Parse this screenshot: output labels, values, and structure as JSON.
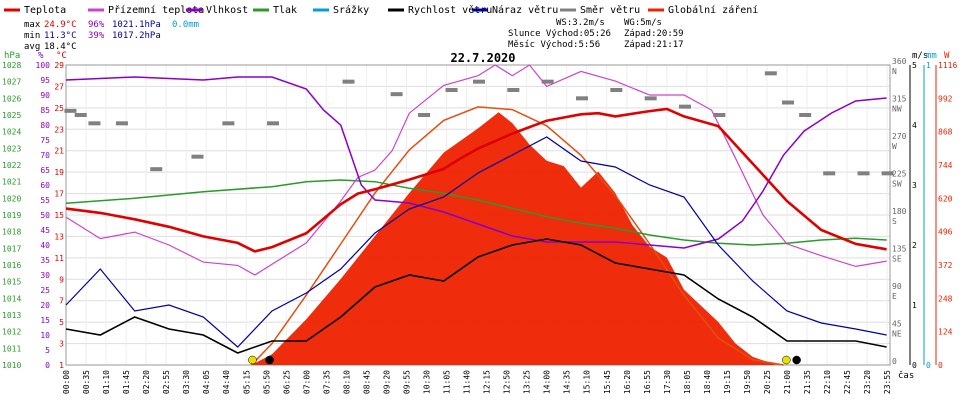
{
  "chart_data": {
    "type": "line",
    "title": "22.7.2020",
    "legend": [
      {
        "name": "Teplota",
        "color": "#e00000"
      },
      {
        "name": "Přízemní teplota",
        "color": "#cc44cc"
      },
      {
        "name": "Vlhkost",
        "color": "#8a00c8"
      },
      {
        "name": "Tlak",
        "color": "#2a9a2a"
      },
      {
        "name": "Srážky",
        "color": "#00a0d0"
      },
      {
        "name": "Rychlost větru",
        "color": "#000000"
      },
      {
        "name": "Náraz větru",
        "color": "#0000a0"
      },
      {
        "name": "Směr větru",
        "color": "#808080"
      },
      {
        "name": "Globální záření",
        "color": "#ee2200"
      }
    ],
    "stats": {
      "max": {
        "label": "max",
        "temp": "24.9°C",
        "hum": "96%",
        "press": "1021.1hPa",
        "rain": "0.0mm"
      },
      "min": {
        "label": "min",
        "temp": "11.3°C",
        "hum": "39%",
        "press": "1017.2hPa"
      },
      "avg": {
        "label": "avg",
        "temp": "18.4°C"
      }
    },
    "info": {
      "ws": "WS:3.2m/s",
      "wg": "WG:5m/s",
      "sun": "Slunce Východ:05:26",
      "sun_set": "Západ:20:59",
      "moon": "Měsíc Východ:5:56",
      "moon_set": "Západ:21:17"
    },
    "axes": {
      "hpa_label": "hPa",
      "pct_label": "%",
      "c_label": "°C",
      "ms_label": "m/s",
      "mm_label": "mm",
      "w_label": "W",
      "x_label": "čas",
      "hpa_ticks": [
        "1010",
        "1011",
        "1012",
        "1013",
        "1014",
        "1015",
        "1016",
        "1017",
        "1018",
        "1019",
        "1020",
        "1021",
        "1022",
        "1023",
        "1024",
        "1025",
        "1026",
        "1027",
        "1028"
      ],
      "pct_ticks": [
        "0",
        "5",
        "10",
        "15",
        "20",
        "25",
        "30",
        "35",
        "40",
        "45",
        "50",
        "55",
        "60",
        "65",
        "70",
        "75",
        "80",
        "85",
        "90",
        "95",
        "100"
      ],
      "c_ticks": [
        "1",
        "3",
        "5",
        "7",
        "9",
        "11",
        "13",
        "15",
        "17",
        "19",
        "21",
        "23",
        "25",
        "27",
        "29"
      ],
      "dir_ticks": [
        "0",
        "45 NE",
        "90 E",
        "135 SE",
        "180 S",
        "225 SW",
        "270 W",
        "315 NW",
        "360 N"
      ],
      "ms_ticks": [
        "0",
        "1",
        "2",
        "3",
        "4",
        "5"
      ],
      "mm_ticks": [
        "0",
        "1"
      ],
      "w_ticks": [
        "0",
        "124",
        "248",
        "372",
        "496",
        "620",
        "744",
        "868",
        "992",
        "1116"
      ],
      "x_ticks": [
        "00:00",
        "00:35",
        "01:10",
        "01:45",
        "02:20",
        "02:55",
        "03:30",
        "04:05",
        "04:40",
        "05:15",
        "05:50",
        "06:25",
        "07:00",
        "07:35",
        "08:10",
        "08:45",
        "09:20",
        "09:55",
        "10:30",
        "11:05",
        "11:40",
        "12:15",
        "12:50",
        "13:25",
        "14:00",
        "14:35",
        "15:10",
        "15:45",
        "16:20",
        "16:55",
        "17:30",
        "18:05",
        "18:40",
        "19:15",
        "19:50",
        "20:25",
        "21:00",
        "21:35",
        "22:10",
        "22:45",
        "23:20",
        "23:55"
      ]
    },
    "temperature_C": [
      [
        0,
        15.6
      ],
      [
        1,
        15.2
      ],
      [
        2,
        14.6
      ],
      [
        3,
        13.9
      ],
      [
        4,
        13.0
      ],
      [
        5,
        12.4
      ],
      [
        5.5,
        11.6
      ],
      [
        6,
        12.0
      ],
      [
        7,
        13.3
      ],
      [
        8,
        16.0
      ],
      [
        8.5,
        17.0
      ],
      [
        9,
        17.4
      ],
      [
        10,
        18.3
      ],
      [
        11,
        19.3
      ],
      [
        11.5,
        20.3
      ],
      [
        12,
        21.2
      ],
      [
        13,
        22.6
      ],
      [
        13.5,
        23.2
      ],
      [
        14,
        23.8
      ],
      [
        14.5,
        24.1
      ],
      [
        15,
        24.4
      ],
      [
        15.5,
        24.5
      ],
      [
        16,
        24.2
      ],
      [
        17,
        24.7
      ],
      [
        17.5,
        24.9
      ],
      [
        18,
        24.2
      ],
      [
        19,
        23.3
      ],
      [
        20,
        19.8
      ],
      [
        21,
        16.3
      ],
      [
        22,
        13.6
      ],
      [
        23,
        12.3
      ],
      [
        23.9,
        11.8
      ]
    ],
    "ground_temp_C": [
      [
        0,
        14.8
      ],
      [
        1,
        12.8
      ],
      [
        2,
        13.4
      ],
      [
        3,
        12.2
      ],
      [
        4,
        10.6
      ],
      [
        5,
        10.3
      ],
      [
        5.5,
        9.4
      ],
      [
        6,
        10.4
      ],
      [
        7,
        12.4
      ],
      [
        8,
        16.3
      ],
      [
        8.5,
        18.5
      ],
      [
        9,
        19.2
      ],
      [
        9.5,
        21.0
      ],
      [
        10,
        24.5
      ],
      [
        11,
        27.1
      ],
      [
        12,
        28.0
      ],
      [
        12.5,
        29.0
      ],
      [
        13,
        28.0
      ],
      [
        13.5,
        29.0
      ],
      [
        14,
        27.0
      ],
      [
        15,
        28.4
      ],
      [
        16,
        27.5
      ],
      [
        17,
        26.2
      ],
      [
        18,
        26.2
      ],
      [
        18.8,
        24.8
      ],
      [
        19.5,
        20.3
      ],
      [
        20.3,
        15.0
      ],
      [
        21,
        12.3
      ],
      [
        22,
        11.2
      ],
      [
        23,
        10.2
      ],
      [
        23.9,
        10.7
      ]
    ],
    "humidity_pct": [
      [
        0,
        95
      ],
      [
        2,
        96
      ],
      [
        4,
        95
      ],
      [
        5,
        96
      ],
      [
        6,
        96
      ],
      [
        7,
        92
      ],
      [
        7.5,
        85
      ],
      [
        8,
        80
      ],
      [
        8.3,
        70
      ],
      [
        8.6,
        60
      ],
      [
        9,
        55
      ],
      [
        10,
        54
      ],
      [
        11,
        51
      ],
      [
        12,
        47
      ],
      [
        13,
        43
      ],
      [
        14,
        41
      ],
      [
        15,
        41
      ],
      [
        16,
        41
      ],
      [
        17,
        40
      ],
      [
        18,
        39
      ],
      [
        19,
        42
      ],
      [
        19.7,
        48
      ],
      [
        20.3,
        58
      ],
      [
        20.9,
        70
      ],
      [
        21.5,
        78
      ],
      [
        22.3,
        84
      ],
      [
        23,
        88
      ],
      [
        23.9,
        89
      ]
    ],
    "pressure_hPa": [
      [
        0,
        1019.7
      ],
      [
        2,
        1020.0
      ],
      [
        4,
        1020.4
      ],
      [
        6,
        1020.7
      ],
      [
        7,
        1021.0
      ],
      [
        8,
        1021.1
      ],
      [
        9,
        1021.0
      ],
      [
        10,
        1020.6
      ],
      [
        11,
        1020.3
      ],
      [
        12,
        1019.9
      ],
      [
        13,
        1019.4
      ],
      [
        14,
        1018.9
      ],
      [
        15,
        1018.5
      ],
      [
        16,
        1018.2
      ],
      [
        17,
        1017.8
      ],
      [
        18,
        1017.5
      ],
      [
        19,
        1017.3
      ],
      [
        20,
        1017.2
      ],
      [
        21,
        1017.3
      ],
      [
        22,
        1017.5
      ],
      [
        23,
        1017.6
      ],
      [
        23.9,
        1017.5
      ]
    ],
    "wind_speed_ms": [
      [
        0,
        0.6
      ],
      [
        1,
        0.5
      ],
      [
        2,
        0.8
      ],
      [
        3,
        0.6
      ],
      [
        4,
        0.5
      ],
      [
        5,
        0.2
      ],
      [
        6,
        0.4
      ],
      [
        7,
        0.4
      ],
      [
        8,
        0.8
      ],
      [
        9,
        1.3
      ],
      [
        10,
        1.5
      ],
      [
        11,
        1.4
      ],
      [
        12,
        1.8
      ],
      [
        13,
        2.0
      ],
      [
        14,
        2.1
      ],
      [
        15,
        2.0
      ],
      [
        16,
        1.7
      ],
      [
        17,
        1.6
      ],
      [
        18,
        1.5
      ],
      [
        19,
        1.1
      ],
      [
        20,
        0.8
      ],
      [
        21,
        0.4
      ],
      [
        22,
        0.4
      ],
      [
        23,
        0.4
      ],
      [
        23.9,
        0.3
      ]
    ],
    "wind_gust_ms": [
      [
        0,
        1.0
      ],
      [
        1,
        1.6
      ],
      [
        2,
        0.9
      ],
      [
        3,
        1.0
      ],
      [
        4,
        0.8
      ],
      [
        5,
        0.3
      ],
      [
        6,
        0.9
      ],
      [
        7,
        1.2
      ],
      [
        8,
        1.6
      ],
      [
        9,
        2.2
      ],
      [
        10,
        2.6
      ],
      [
        11,
        2.8
      ],
      [
        12,
        3.2
      ],
      [
        13,
        3.5
      ],
      [
        14,
        3.8
      ],
      [
        15,
        3.4
      ],
      [
        16,
        3.3
      ],
      [
        17,
        3.0
      ],
      [
        18,
        2.8
      ],
      [
        19,
        2.0
      ],
      [
        20,
        1.4
      ],
      [
        21,
        0.9
      ],
      [
        22,
        0.7
      ],
      [
        23,
        0.6
      ],
      [
        23.9,
        0.5
      ]
    ],
    "wind_direction_deg": [
      [
        0.1,
        305
      ],
      [
        0.4,
        300
      ],
      [
        0.8,
        290
      ],
      [
        1.6,
        290
      ],
      [
        2.6,
        235
      ],
      [
        3.8,
        250
      ],
      [
        4.7,
        290
      ],
      [
        6.0,
        290
      ],
      [
        8.2,
        340
      ],
      [
        9.6,
        325
      ],
      [
        10.4,
        300
      ],
      [
        11.2,
        330
      ],
      [
        12.0,
        340
      ],
      [
        13.0,
        330
      ],
      [
        14.0,
        340
      ],
      [
        15.0,
        320
      ],
      [
        16.0,
        330
      ],
      [
        17.0,
        320
      ],
      [
        18.0,
        310
      ],
      [
        19.0,
        300
      ],
      [
        20.5,
        350
      ],
      [
        21.0,
        315
      ],
      [
        21.5,
        300
      ],
      [
        22.2,
        230
      ],
      [
        23.2,
        230
      ],
      [
        23.9,
        230
      ]
    ],
    "solar_W": [
      [
        0,
        0
      ],
      [
        5.4,
        0
      ],
      [
        6.0,
        40
      ],
      [
        7.0,
        170
      ],
      [
        8.0,
        320
      ],
      [
        9.0,
        480
      ],
      [
        10.0,
        640
      ],
      [
        11.0,
        790
      ],
      [
        12.0,
        880
      ],
      [
        12.6,
        940
      ],
      [
        13.0,
        900
      ],
      [
        13.5,
        820
      ],
      [
        14.0,
        760
      ],
      [
        14.5,
        740
      ],
      [
        15.0,
        660
      ],
      [
        15.5,
        720
      ],
      [
        16.0,
        640
      ],
      [
        16.5,
        520
      ],
      [
        17.0,
        440
      ],
      [
        17.5,
        400
      ],
      [
        18.0,
        280
      ],
      [
        18.5,
        220
      ],
      [
        19.0,
        160
      ],
      [
        19.5,
        80
      ],
      [
        20.0,
        30
      ],
      [
        20.7,
        0
      ],
      [
        23.9,
        0
      ]
    ],
    "solar_theoretical_W": [
      [
        5.4,
        0
      ],
      [
        6,
        80
      ],
      [
        7,
        260
      ],
      [
        8,
        450
      ],
      [
        9,
        640
      ],
      [
        10,
        800
      ],
      [
        11,
        910
      ],
      [
        12,
        960
      ],
      [
        13,
        950
      ],
      [
        14,
        890
      ],
      [
        15,
        780
      ],
      [
        16,
        630
      ],
      [
        17,
        450
      ],
      [
        18,
        260
      ],
      [
        19,
        100
      ],
      [
        20,
        20
      ],
      [
        20.9,
        0
      ]
    ],
    "sun_markers": [
      {
        "hour": 5.43,
        "color": "#e8e000"
      },
      {
        "hour": 5.93,
        "color": "#000000"
      },
      {
        "hour": 20.98,
        "color": "#e8e000"
      },
      {
        "hour": 21.28,
        "color": "#000000"
      }
    ]
  }
}
